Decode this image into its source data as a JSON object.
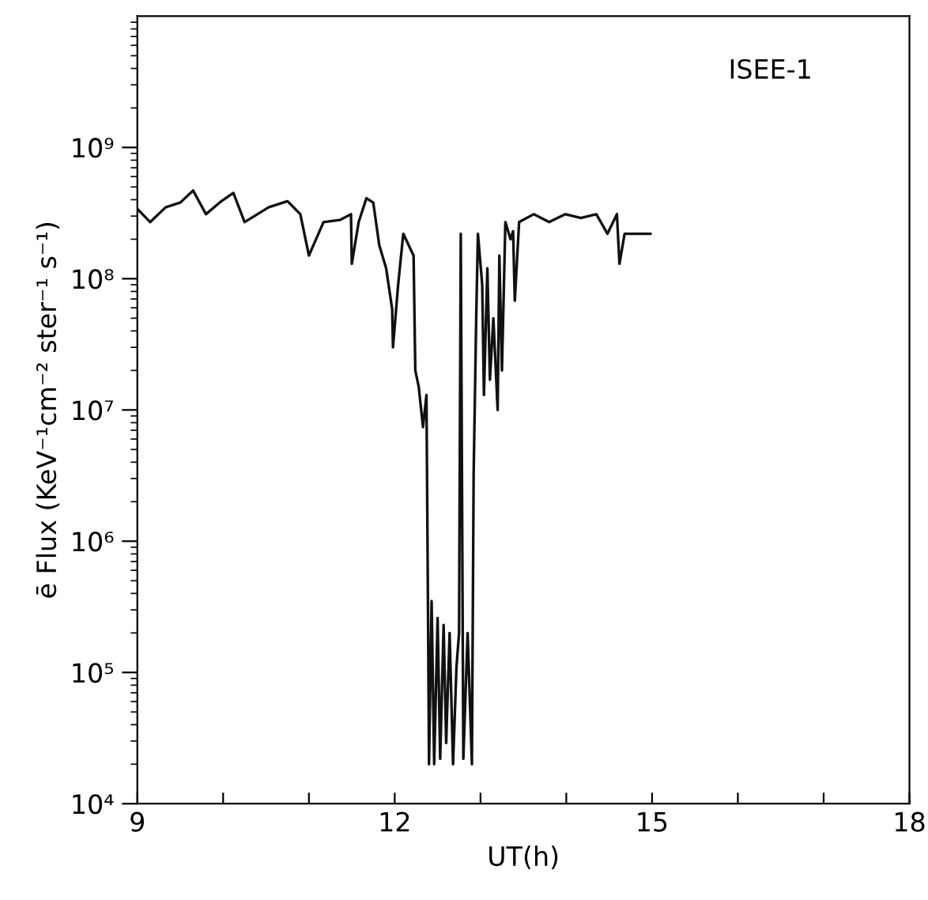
{
  "chart_data": {
    "type": "line",
    "xlabel": "UT(h)",
    "ylabel": "ē Flux (KeV⁻¹cm⁻² ster⁻¹ s⁻¹)",
    "annotations": [
      "ISEE-1"
    ],
    "log": "y",
    "grid": false,
    "legend": false,
    "marker": "none",
    "line_style": "solid",
    "xlim": [
      9,
      18
    ],
    "ylim": [
      10000,
      10000000000
    ],
    "xticks": [
      9,
      {
        "value": 10,
        "label": null
      },
      {
        "value": 11,
        "label": null
      },
      12,
      {
        "value": 13,
        "label": null
      },
      {
        "value": 14,
        "label": null
      },
      15,
      {
        "value": 16,
        "label": null
      },
      {
        "value": 17,
        "label": null
      },
      18
    ],
    "yticks": [
      {
        "value": 10000,
        "label": "10⁴"
      },
      {
        "value": 100000,
        "label": "10⁵"
      },
      {
        "value": 1000000,
        "label": "10⁶"
      },
      {
        "value": 10000000,
        "label": "10⁷"
      },
      {
        "value": 100000000,
        "label": "10⁸"
      },
      {
        "value": 1000000000,
        "label": "10⁹"
      }
    ],
    "series": [
      {
        "color": "#111111",
        "x": [
          9.0,
          9.15,
          9.33,
          9.5,
          9.65,
          9.8,
          9.98,
          10.12,
          10.25,
          10.53,
          10.75,
          10.9,
          11.0,
          11.17,
          11.36,
          11.49,
          11.5,
          11.58,
          11.67,
          11.75,
          11.82,
          11.9,
          11.97,
          11.98,
          12.04,
          12.1,
          12.22,
          12.24,
          12.28,
          12.33,
          12.37,
          12.39,
          12.4,
          12.43,
          12.46,
          12.5,
          12.53,
          12.57,
          12.6,
          12.64,
          12.68,
          12.72,
          12.75,
          12.77,
          12.8,
          12.85,
          12.9,
          12.92,
          12.95,
          12.97,
          13.02,
          13.04,
          13.08,
          13.11,
          13.15,
          13.2,
          13.22,
          13.25,
          13.29,
          13.35,
          13.38,
          13.4,
          13.45,
          13.62,
          13.8,
          13.99,
          14.17,
          14.35,
          14.48,
          14.59,
          14.62,
          14.68,
          14.8,
          14.98
        ],
        "values": [
          340000000.0,
          270000000.0,
          350000000.0,
          380000000.0,
          470000000.0,
          310000000.0,
          390000000.0,
          450000000.0,
          270000000.0,
          350000000.0,
          390000000.0,
          310000000.0,
          150000000.0,
          270000000.0,
          280000000.0,
          310000000.0,
          130000000.0,
          270000000.0,
          410000000.0,
          380000000.0,
          180000000.0,
          120000000.0,
          59000000.0,
          30000000.0,
          90000000.0,
          220000000.0,
          150000000.0,
          20000000.0,
          15000000.0,
          7400000.0,
          13000000.0,
          200000.0,
          20000.0,
          350000.0,
          20000.0,
          260000.0,
          22000.0,
          230000.0,
          29000.0,
          200000.0,
          20000.0,
          110000.0,
          200000.0,
          220000000.0,
          22000.0,
          200000.0,
          20000.0,
          3200000.0,
          50000000.0,
          220000000.0,
          90000000.0,
          13000000.0,
          120000000.0,
          17000000.0,
          50000000.0,
          10000000.0,
          150000000.0,
          20000000.0,
          270000000.0,
          200000000.0,
          230000000.0,
          68000000.0,
          270000000.0,
          310000000.0,
          270000000.0,
          310000000.0,
          290000000.0,
          310000000.0,
          220000000.0,
          310000000.0,
          130000000.0,
          220000000.0,
          220000000.0,
          220000000.0
        ]
      }
    ]
  }
}
